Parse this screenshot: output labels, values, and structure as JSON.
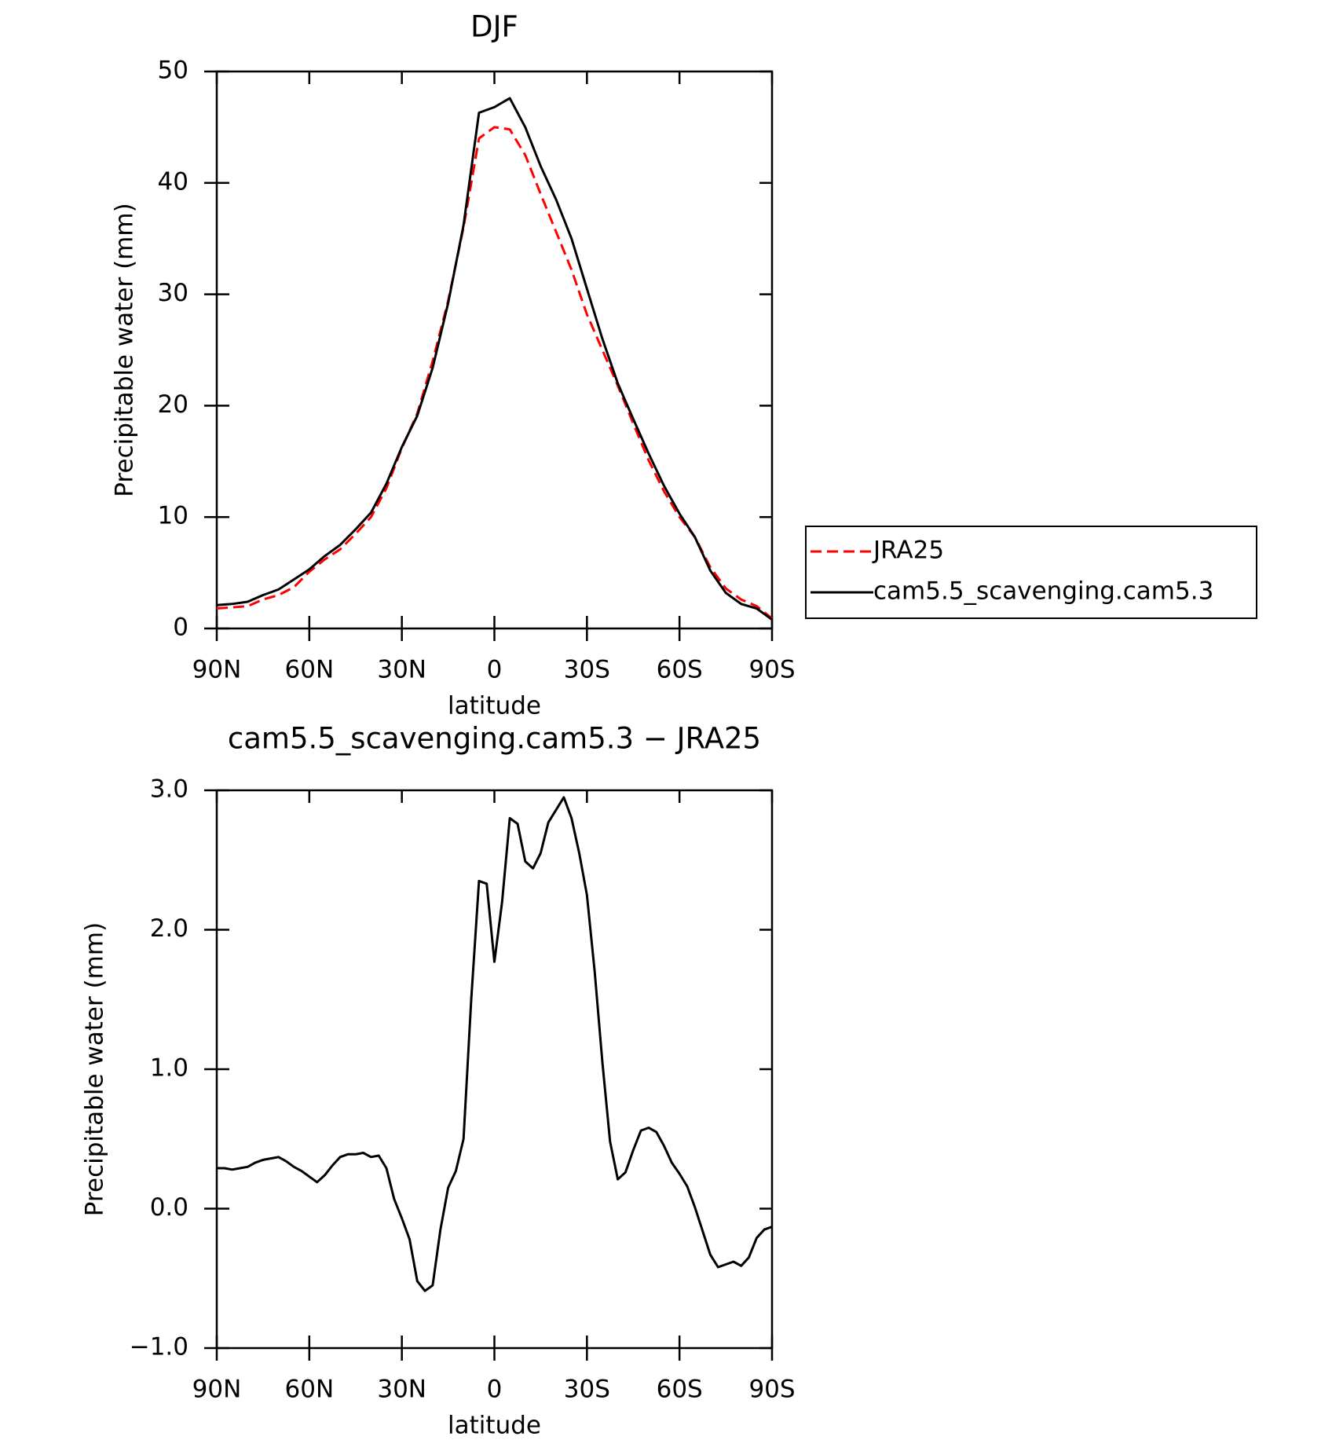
{
  "chart_data": [
    {
      "type": "line",
      "title": "DJF",
      "xlabel": "latitude",
      "ylabel": "Precipitable water (mm)",
      "x": [
        90,
        85,
        80,
        75,
        70,
        65,
        60,
        55,
        50,
        45,
        40,
        35,
        30,
        25,
        20,
        15,
        10,
        5,
        0,
        -5,
        -10,
        -15,
        -20,
        -25,
        -30,
        -35,
        -40,
        -45,
        -50,
        -55,
        -60,
        -65,
        -70,
        -75,
        -80,
        -85,
        -90
      ],
      "series": [
        {
          "name": "JRA25",
          "color": "#ff0000",
          "style": "dashed",
          "values": [
            1.8,
            1.9,
            2.0,
            2.6,
            3.0,
            3.7,
            5.1,
            6.2,
            7.1,
            8.5,
            10.0,
            12.6,
            16.2,
            19.3,
            24.0,
            29.4,
            36.0,
            44.0,
            45.0,
            44.8,
            42.5,
            39.0,
            35.6,
            32.2,
            28.2,
            25.0,
            21.8,
            18.4,
            15.1,
            12.3,
            10.0,
            8.2,
            5.5,
            3.6,
            2.6,
            2.0,
            0.9
          ]
        },
        {
          "name": "cam5.5_scavenging.cam5.3",
          "color": "#000000",
          "style": "solid",
          "values": [
            2.1,
            2.2,
            2.4,
            3.0,
            3.5,
            4.4,
            5.3,
            6.5,
            7.5,
            8.9,
            10.4,
            13.0,
            16.3,
            19.1,
            23.4,
            29.2,
            36.2,
            46.3,
            46.8,
            47.6,
            45.0,
            41.5,
            38.5,
            35.0,
            30.5,
            26.0,
            22.0,
            18.8,
            15.7,
            12.8,
            10.3,
            8.2,
            5.2,
            3.2,
            2.2,
            1.8,
            0.8
          ]
        }
      ],
      "xlim": [
        90,
        -90
      ],
      "xticks": [
        {
          "value": 90,
          "label": "90N"
        },
        {
          "value": 60,
          "label": "60N"
        },
        {
          "value": 30,
          "label": "30N"
        },
        0,
        {
          "value": -30,
          "label": "30S"
        },
        {
          "value": -60,
          "label": "60S"
        },
        {
          "value": -90,
          "label": "90S"
        }
      ],
      "ylim": [
        0,
        50
      ],
      "yticks": [
        0,
        10,
        20,
        30,
        40,
        50
      ],
      "legend": "right"
    },
    {
      "type": "line",
      "title": "cam5.5_scavenging.cam5.3 − JRA25",
      "xlabel": "latitude",
      "ylabel": "Precipitable water (mm)",
      "x": [
        90,
        87.5,
        85,
        82.5,
        80,
        77.5,
        75,
        72.5,
        70,
        67.5,
        65,
        62.5,
        60,
        57.5,
        55,
        52.5,
        50,
        47.5,
        45,
        42.5,
        40,
        37.5,
        35,
        32.5,
        30,
        27.5,
        25,
        22.5,
        20,
        17.5,
        15,
        12.5,
        10,
        7.5,
        5,
        2.5,
        0,
        -2.5,
        -5,
        -7.5,
        -10,
        -12.5,
        -15,
        -17.5,
        -20,
        -22.5,
        -25,
        -27.5,
        -30,
        -32.5,
        -35,
        -37.5,
        -40,
        -42.5,
        -45,
        -47.5,
        -50,
        -52.5,
        -55,
        -57.5,
        -60,
        -62.5,
        -65,
        -67.5,
        -70,
        -72.5,
        -75,
        -77.5,
        -80,
        -82.5,
        -85,
        -87.5,
        -90
      ],
      "series": [
        {
          "name": "cam5.5_scavenging.cam5.3 − JRA25",
          "color": "#000000",
          "style": "solid",
          "values": [
            0.29,
            0.29,
            0.28,
            0.29,
            0.3,
            0.33,
            0.35,
            0.36,
            0.37,
            0.34,
            0.3,
            0.27,
            0.23,
            0.19,
            0.24,
            0.31,
            0.37,
            0.39,
            0.39,
            0.4,
            0.37,
            0.38,
            0.29,
            0.07,
            -0.07,
            -0.22,
            -0.52,
            -0.59,
            -0.55,
            -0.15,
            0.15,
            0.27,
            0.5,
            1.5,
            2.35,
            2.33,
            1.77,
            2.2,
            2.8,
            2.76,
            2.49,
            2.44,
            2.55,
            2.77,
            2.86,
            2.95,
            2.8,
            2.55,
            2.25,
            1.7,
            1.05,
            0.48,
            0.21,
            0.26,
            0.42,
            0.56,
            0.58,
            0.55,
            0.45,
            0.33,
            0.25,
            0.16,
            0.01,
            -0.16,
            -0.33,
            -0.42,
            -0.4,
            -0.38,
            -0.41,
            -0.35,
            -0.21,
            -0.15,
            -0.13
          ]
        }
      ],
      "xlim": [
        90,
        -90
      ],
      "xticks": [
        {
          "value": 90,
          "label": "90N"
        },
        {
          "value": 60,
          "label": "60N"
        },
        {
          "value": 30,
          "label": "30N"
        },
        0,
        {
          "value": -30,
          "label": "30S"
        },
        {
          "value": -60,
          "label": "60S"
        },
        {
          "value": -90,
          "label": "90S"
        }
      ],
      "ylim": [
        -1,
        3
      ],
      "yticks": [
        {
          "value": -1,
          "label": "−1.0"
        },
        {
          "value": 0,
          "label": "0.0"
        },
        {
          "value": 1,
          "label": "1.0"
        },
        {
          "value": 2,
          "label": "2.0"
        },
        {
          "value": 3,
          "label": "3.0"
        }
      ]
    }
  ]
}
